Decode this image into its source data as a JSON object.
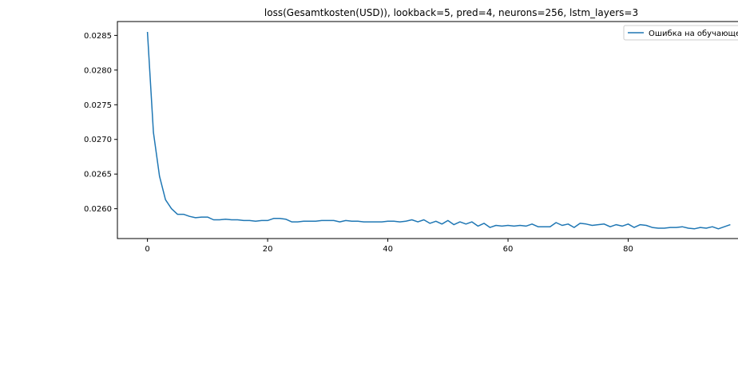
{
  "chart_data": {
    "type": "line",
    "title": "loss(Gesamtkosten(USD)), lookback=5, pred=4, neurons=256, lstm_layers=3",
    "xlabel": "",
    "ylabel": "",
    "xlim": [
      -5,
      100
    ],
    "ylim": [
      0.02557,
      0.0287
    ],
    "x_ticks": [
      0,
      20,
      40,
      60,
      80
    ],
    "y_ticks": [
      0.026,
      0.0265,
      0.027,
      0.0275,
      0.028,
      0.0285
    ],
    "x_tick_labels": [
      "0",
      "20",
      "40",
      "60",
      "80"
    ],
    "y_tick_labels": [
      "0.0260",
      "0.0265",
      "0.0270",
      "0.0275",
      "0.0280",
      "0.0285"
    ],
    "grid": false,
    "legend_position": "top-right",
    "series": [
      {
        "name": "Ошибка на обучающе",
        "color": "#1f77b4",
        "x": [
          0,
          1,
          2,
          3,
          4,
          5,
          6,
          7,
          8,
          9,
          10,
          11,
          12,
          13,
          14,
          15,
          16,
          17,
          18,
          19,
          20,
          21,
          22,
          23,
          24,
          25,
          26,
          27,
          28,
          29,
          30,
          31,
          32,
          33,
          34,
          35,
          36,
          37,
          38,
          39,
          40,
          41,
          42,
          43,
          44,
          45,
          46,
          47,
          48,
          49,
          50,
          51,
          52,
          53,
          54,
          55,
          56,
          57,
          58,
          59,
          60,
          61,
          62,
          63,
          64,
          65,
          66,
          67,
          68,
          69,
          70,
          71,
          72,
          73,
          74,
          75,
          76,
          77,
          78,
          79,
          80,
          81,
          82,
          83,
          84,
          85,
          86,
          87,
          88,
          89,
          90,
          91,
          92,
          93,
          94,
          95,
          96,
          97
        ],
        "values": [
          0.02855,
          0.0271,
          0.02647,
          0.02613,
          0.026,
          0.02592,
          0.02592,
          0.02589,
          0.02587,
          0.02588,
          0.02588,
          0.02584,
          0.02584,
          0.02585,
          0.02584,
          0.02584,
          0.02583,
          0.02583,
          0.02582,
          0.02583,
          0.02583,
          0.02586,
          0.02586,
          0.02585,
          0.02581,
          0.02581,
          0.02582,
          0.02582,
          0.02582,
          0.02583,
          0.02583,
          0.02583,
          0.02581,
          0.02583,
          0.02582,
          0.02582,
          0.02581,
          0.02581,
          0.02581,
          0.02581,
          0.02582,
          0.02582,
          0.02581,
          0.02582,
          0.02584,
          0.02581,
          0.02584,
          0.02579,
          0.02582,
          0.02578,
          0.02583,
          0.02577,
          0.02581,
          0.02578,
          0.02581,
          0.02575,
          0.02579,
          0.02573,
          0.02576,
          0.02575,
          0.02576,
          0.02575,
          0.02576,
          0.02575,
          0.02578,
          0.02574,
          0.02574,
          0.02574,
          0.0258,
          0.02576,
          0.02578,
          0.02573,
          0.02579,
          0.02578,
          0.02576,
          0.02577,
          0.02578,
          0.02574,
          0.02577,
          0.02575,
          0.02578,
          0.02573,
          0.02577,
          0.02576,
          0.02573,
          0.02572,
          0.02572,
          0.02573,
          0.02573,
          0.02574,
          0.02572,
          0.02571,
          0.02573,
          0.02572,
          0.02574,
          0.02571,
          0.02574,
          0.02577
        ]
      }
    ]
  }
}
